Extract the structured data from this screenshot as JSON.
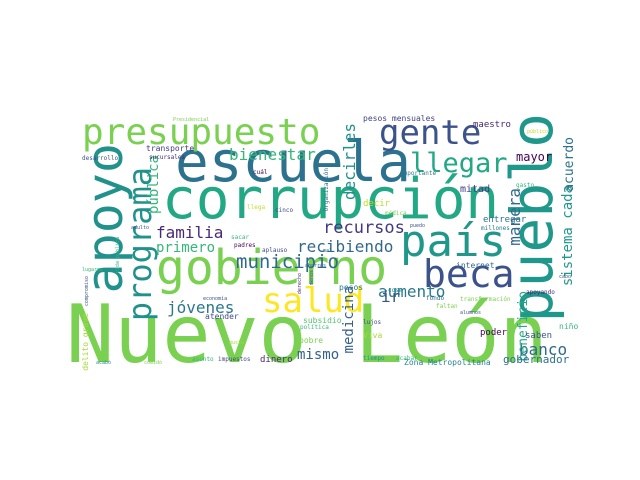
{
  "words": [
    {
      "text": "Nuevo León",
      "color": "#7ad151"
    },
    {
      "text": "corrupción",
      "color": "#22a884"
    },
    {
      "text": "escuela",
      "color": "#2c728e"
    },
    {
      "text": "pueblo",
      "color": "#1f988b"
    },
    {
      "text": "gobierno",
      "color": "#7ad151"
    },
    {
      "text": "país",
      "color": "#1f988b"
    },
    {
      "text": "apoyo",
      "color": "#21918c"
    },
    {
      "text": "presupuesto",
      "color": "#7ad151"
    },
    {
      "text": "gente",
      "color": "#3b528b"
    },
    {
      "text": "beca",
      "color": "#3b528b"
    },
    {
      "text": "programa",
      "color": "#21918c"
    },
    {
      "text": "salud",
      "color": "#fde725"
    },
    {
      "text": "llegar",
      "color": "#22a884"
    },
    {
      "text": "municipio",
      "color": "#31688e"
    },
    {
      "text": "bienestar",
      "color": "#35b779"
    },
    {
      "text": "recursos",
      "color": "#443983"
    },
    {
      "text": "recibiendo",
      "color": "#31688e"
    },
    {
      "text": "familia",
      "color": "#482878"
    },
    {
      "text": "jóvenes",
      "color": "#2a788e"
    },
    {
      "text": "aumento",
      "color": "#2a788e"
    },
    {
      "text": "pública",
      "color": "#35b779"
    },
    {
      "text": "sistema cada",
      "color": "#1f988b"
    },
    {
      "text": "decirles",
      "color": "#21918c"
    },
    {
      "text": "manera",
      "color": "#31688e"
    },
    {
      "text": "primero",
      "color": "#35b779"
    },
    {
      "text": "banco",
      "color": "#31688e"
    },
    {
      "text": "medicina",
      "color": "#355f8d"
    },
    {
      "text": "ir",
      "color": "#3b528b"
    },
    {
      "text": "mismo",
      "color": "#355f8d"
    },
    {
      "text": "mayor",
      "color": "#440154"
    },
    {
      "text": "acuerdo",
      "color": "#2c728e"
    },
    {
      "text": "beneficio",
      "color": "#22a884"
    },
    {
      "text": "gobernador",
      "color": "#2c728e"
    },
    {
      "text": "Zona Metropolitana",
      "color": "#26828e"
    },
    {
      "text": "mitad",
      "color": "#443983"
    },
    {
      "text": "maestro",
      "color": "#482878"
    },
    {
      "text": "pesos mensuales",
      "color": "#414487"
    },
    {
      "text": "entregar",
      "color": "#2c728e"
    },
    {
      "text": "poder",
      "color": "#440154"
    },
    {
      "text": "saben",
      "color": "#3b528b"
    },
    {
      "text": "niño",
      "color": "#35b779"
    },
    {
      "text": "internet",
      "color": "#31688e"
    },
    {
      "text": "dinero",
      "color": "#482878"
    },
    {
      "text": "atender",
      "color": "#3e4989"
    },
    {
      "text": "subsidio",
      "color": "#52c569"
    },
    {
      "text": "pobre",
      "color": "#7ad151"
    },
    {
      "text": "Viva",
      "color": "#a5db36"
    },
    {
      "text": "decir",
      "color": "#bddf26"
    },
    {
      "text": "pesos",
      "color": "#2a788e"
    },
    {
      "text": "transporte",
      "color": "#443983"
    },
    {
      "text": "desarrollo",
      "color": "#3b528b"
    },
    {
      "text": "sucursales",
      "color": "#482878"
    },
    {
      "text": "Presidencial",
      "color": "#7ad151"
    },
    {
      "text": "importante",
      "color": "#2a788e"
    },
    {
      "text": "gasto",
      "color": "#35b779"
    },
    {
      "text": "público",
      "color": "#bddf26"
    },
    {
      "text": "Organización",
      "color": "#2c728e"
    },
    {
      "text": "cuál",
      "color": "#440154"
    },
    {
      "text": "cinco",
      "color": "#414487"
    },
    {
      "text": "llega",
      "color": "#bddf26"
    },
    {
      "text": "médica",
      "color": "#7ad151"
    },
    {
      "text": "puedo",
      "color": "#3b528b"
    },
    {
      "text": "millones",
      "color": "#2a788e"
    },
    {
      "text": "sacar",
      "color": "#35b779"
    },
    {
      "text": "padres",
      "color": "#440154"
    },
    {
      "text": "aplauso",
      "color": "#3e4989"
    },
    {
      "text": "adulto",
      "color": "#3b528b"
    },
    {
      "text": "vida pública",
      "color": "#35b779"
    },
    {
      "text": "lugares",
      "color": "#35b779"
    },
    {
      "text": "compromiso",
      "color": "#3b528b"
    },
    {
      "text": "economía",
      "color": "#3b528b"
    },
    {
      "text": "cosa",
      "color": "#21918c"
    },
    {
      "text": "fondo",
      "color": "#31688e"
    },
    {
      "text": "transformación",
      "color": "#7ad151"
    },
    {
      "text": "apoyando",
      "color": "#482878"
    },
    {
      "text": "cabo",
      "color": "#3b528b"
    },
    {
      "text": "lujos",
      "color": "#3e4989"
    },
    {
      "text": "alumnos",
      "color": "#3b528b"
    },
    {
      "text": "faltan",
      "color": "#7ad151"
    },
    {
      "text": "política",
      "color": "#35b779"
    },
    {
      "text": "gusto",
      "color": "#a5db36"
    },
    {
      "text": "asunto",
      "color": "#35b779"
    },
    {
      "text": "impuestos",
      "color": "#414487"
    },
    {
      "text": "tiempo",
      "color": "#21918c"
    },
    {
      "text": "acabar",
      "color": "#35b779"
    },
    {
      "text": "acabó",
      "color": "#21918c"
    },
    {
      "text": "comidó",
      "color": "#7ad151"
    },
    {
      "text": "delito grave",
      "color": "#a5db36"
    },
    {
      "text": "derecho",
      "color": "#482878"
    },
    {
      "text": "menos",
      "color": "#3b528b"
    },
    {
      "text": "ahorros",
      "color": "#31688e"
    },
    {
      "text": "mal",
      "color": "#2a788e"
    }
  ]
}
